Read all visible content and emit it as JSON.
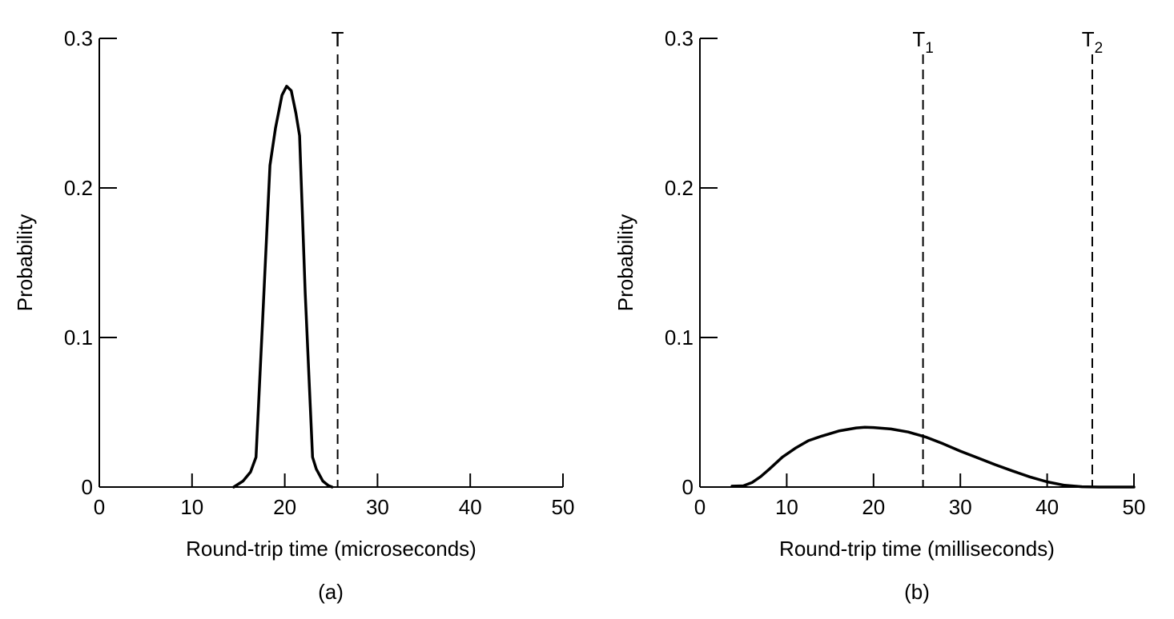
{
  "chart_data": [
    {
      "type": "line",
      "caption": "(a)",
      "xlabel": "Round-trip time (microseconds)",
      "ylabel": "Probability",
      "xlim": [
        0,
        50
      ],
      "ylim": [
        0,
        0.3
      ],
      "xticks": [
        "0",
        "10",
        "20",
        "30",
        "40",
        "50"
      ],
      "yticks": [
        "0",
        "0.1",
        "0.2",
        "0.3"
      ],
      "grid": false,
      "series": [
        {
          "x": [
            14.5,
            15.5,
            16.3,
            16.9,
            17.6,
            18.4,
            19.0,
            19.7,
            20.2,
            20.7,
            21.2,
            21.6,
            22.2,
            23.0,
            23.4,
            24.1,
            24.7,
            25.1
          ],
          "y": [
            0.0,
            0.004,
            0.01,
            0.02,
            0.11,
            0.215,
            0.24,
            0.262,
            0.268,
            0.265,
            0.25,
            0.235,
            0.13,
            0.02,
            0.012,
            0.004,
            0.001,
            0.0
          ]
        }
      ],
      "markers": [
        {
          "label": "T",
          "subscript": "",
          "x": 25.7
        }
      ]
    },
    {
      "type": "line",
      "caption": "(b)",
      "xlabel": "Round-trip time (milliseconds)",
      "ylabel": "Probability",
      "xlim": [
        0,
        50
      ],
      "ylim": [
        0,
        0.3
      ],
      "xticks": [
        "0",
        "10",
        "20",
        "30",
        "40",
        "50"
      ],
      "yticks": [
        "0",
        "0.1",
        "0.2",
        "0.3"
      ],
      "grid": false,
      "series": [
        {
          "x": [
            3.7,
            5.0,
            6.0,
            7.0,
            8.0,
            9.5,
            11.0,
            12.5,
            14.0,
            16.0,
            18.0,
            19.0,
            20.0,
            22.0,
            24.0,
            26.0,
            28.0,
            30.0,
            32.0,
            34.0,
            36.0,
            38.0,
            40.0,
            42.0,
            44.0,
            46.0,
            48.0,
            50.0
          ],
          "y": [
            0.0006,
            0.0008,
            0.003,
            0.007,
            0.012,
            0.02,
            0.026,
            0.031,
            0.034,
            0.0375,
            0.0395,
            0.04,
            0.0398,
            0.0388,
            0.0368,
            0.0335,
            0.029,
            0.024,
            0.0195,
            0.015,
            0.0108,
            0.0068,
            0.0035,
            0.0012,
            0.0002,
            0.0,
            0.0,
            0.0
          ]
        }
      ],
      "markers": [
        {
          "label": "T",
          "subscript": "1",
          "x": 25.7
        },
        {
          "label": "T",
          "subscript": "2",
          "x": 45.2
        }
      ]
    }
  ]
}
